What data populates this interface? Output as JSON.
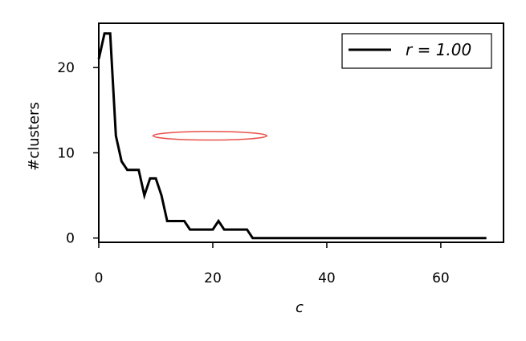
{
  "chart_data": {
    "type": "line",
    "xlabel": "c",
    "ylabel": "#clusters",
    "xlim": [
      0,
      71
    ],
    "ylim": [
      -0.5,
      25.2
    ],
    "xticks": [
      0,
      20,
      40,
      60
    ],
    "yticks": [
      0,
      10,
      20
    ],
    "grid": false,
    "legend_position": "top-right",
    "series": [
      {
        "name": "r = 1.00",
        "color": "#000000",
        "x": [
          0,
          1,
          2,
          3,
          4,
          5,
          6,
          7,
          8,
          9,
          10,
          11,
          12,
          13,
          14,
          15,
          16,
          17,
          18,
          19,
          20,
          21,
          22,
          23,
          24,
          25,
          26,
          27,
          28,
          29,
          30,
          31,
          32,
          33,
          34,
          35,
          36,
          37,
          38,
          39,
          40,
          41,
          42,
          43,
          44,
          45,
          46,
          47,
          48,
          49,
          50,
          51,
          52,
          53,
          54,
          55,
          56,
          57,
          58,
          59,
          60,
          61,
          62,
          63,
          64,
          65,
          66,
          67,
          68
        ],
        "y": [
          21,
          24,
          24,
          12,
          9,
          8,
          8,
          8,
          5,
          7,
          7,
          5,
          2,
          2,
          2,
          2,
          1,
          1,
          1,
          1,
          1,
          2,
          1,
          1,
          1,
          1,
          1,
          0,
          0,
          0,
          0,
          0,
          0,
          0,
          0,
          0,
          0,
          0,
          0,
          0,
          0,
          0,
          0,
          0,
          0,
          0,
          0,
          0,
          0,
          0,
          0,
          0,
          0,
          0,
          0,
          0,
          0,
          0,
          0,
          0,
          0,
          0,
          0,
          0,
          0,
          0,
          0,
          0,
          0
        ]
      }
    ],
    "annotations": [
      {
        "type": "ellipse",
        "color": "#e8504a",
        "center": [
          19.5,
          12
        ],
        "rx": 10,
        "ry": 0.5
      }
    ]
  }
}
